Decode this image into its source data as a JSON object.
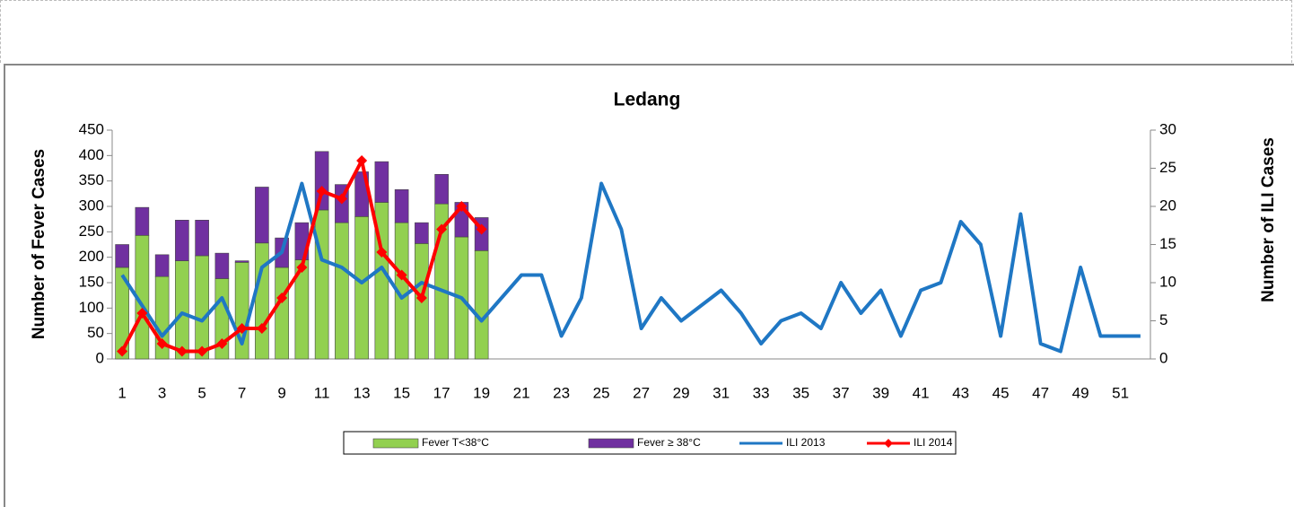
{
  "chart_data": {
    "type": "bar-line",
    "title": "Ledang",
    "y_label": "Number of Fever Cases",
    "y2_label": "Number of ILI Cases",
    "categories": [
      1,
      null,
      3,
      null,
      5,
      null,
      7,
      null,
      9,
      null,
      11,
      null,
      13,
      null,
      15,
      null,
      17,
      null,
      19,
      null,
      21,
      null,
      23,
      null,
      25,
      null,
      27,
      null,
      29,
      null,
      31,
      null,
      33,
      null,
      35,
      null,
      37,
      null,
      39,
      null,
      41,
      null,
      43,
      null,
      45,
      null,
      47,
      null,
      49,
      null,
      51,
      null
    ],
    "ylim": [
      0,
      450
    ],
    "yticks": [
      0,
      50,
      100,
      150,
      200,
      250,
      300,
      350,
      400,
      450
    ],
    "y2lim": [
      0,
      30
    ],
    "y2ticks": [
      0,
      5,
      10,
      15,
      20,
      25,
      30
    ],
    "series": [
      {
        "name": "Fever T<38°C",
        "kind": "bar",
        "color": "#92d050",
        "values": [
          180,
          243,
          162,
          193,
          203,
          158,
          190,
          228,
          180,
          195,
          293,
          268,
          280,
          308,
          268,
          227,
          305,
          240,
          213,
          null,
          null,
          null,
          null,
          null,
          null,
          null,
          null,
          null,
          null,
          null,
          null,
          null,
          null,
          null,
          null,
          null,
          null,
          null,
          null,
          null,
          null,
          null,
          null,
          null,
          null,
          null,
          null,
          null,
          null,
          null,
          null,
          null
        ]
      },
      {
        "name": "Fever ≥ 38°C",
        "kind": "bar",
        "color": "#7030a0",
        "values": [
          45,
          55,
          43,
          80,
          70,
          50,
          3,
          110,
          58,
          73,
          115,
          75,
          88,
          80,
          65,
          41,
          58,
          68,
          65,
          null,
          null,
          null,
          null,
          null,
          null,
          null,
          null,
          null,
          null,
          null,
          null,
          null,
          null,
          null,
          null,
          null,
          null,
          null,
          null,
          null,
          null,
          null,
          null,
          null,
          null,
          null,
          null,
          null,
          null,
          null,
          null,
          null
        ]
      },
      {
        "name": "ILI 2013",
        "kind": "line",
        "axis": "y2",
        "color": "#1f77c4",
        "values": [
          11,
          7,
          3,
          6,
          5,
          8,
          2,
          12,
          14,
          23,
          13,
          12,
          10,
          12,
          8,
          10,
          9,
          8,
          5,
          8,
          11,
          11,
          3,
          8,
          23,
          17,
          4,
          8,
          5,
          7,
          9,
          6,
          2,
          5,
          6,
          4,
          10,
          6,
          9,
          3,
          9,
          10,
          18,
          15,
          3,
          19,
          2,
          1,
          12,
          3,
          3,
          3
        ]
      },
      {
        "name": "ILI 2014",
        "kind": "line",
        "axis": "y2",
        "color": "#ff0000",
        "marker": "diamond",
        "values": [
          1,
          6,
          2,
          1,
          1,
          2,
          4,
          4,
          8,
          12,
          22,
          21,
          26,
          14,
          11,
          8,
          17,
          20,
          17,
          null,
          null,
          null,
          null,
          null,
          null,
          null,
          null,
          null,
          null,
          null,
          null,
          null,
          null,
          null,
          null,
          null,
          null,
          null,
          null,
          null,
          null,
          null,
          null,
          null,
          null,
          null,
          null,
          null,
          null,
          null,
          null,
          null
        ]
      }
    ]
  }
}
